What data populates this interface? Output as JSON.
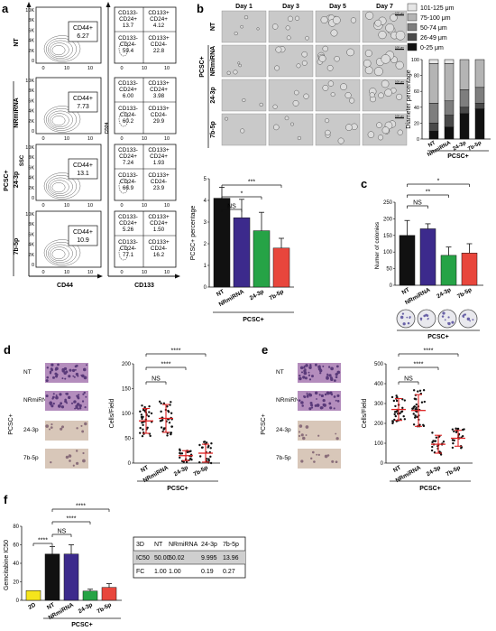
{
  "panels": {
    "a": {
      "letter": "a",
      "group_label": "PCSC+",
      "rows": [
        "NT",
        "NRmiRNA",
        "24-3p",
        "7b-5p"
      ],
      "ssc_label": "SSC",
      "cd44_axis": "CD44",
      "cd24_axis": "CD24",
      "cd133_axis": "CD133",
      "y_ticks": [
        "10K",
        "8K",
        "6K",
        "4K",
        "2K",
        "0"
      ],
      "x_ticks": [
        "0",
        "10",
        "10"
      ],
      "cd44_gates": [
        {
          "label": "CD44+",
          "value": "6.27"
        },
        {
          "label": "CD44+",
          "value": "7.73"
        },
        {
          "label": "CD44+",
          "value": "13.1"
        },
        {
          "label": "CD44+",
          "value": "10.9"
        }
      ],
      "quadrants": [
        {
          "q1l": "CD133-",
          "q1l2": "CD24+",
          "q1v": "13.7",
          "q2l": "CD133+",
          "q2l2": "CD24+",
          "q2v": "4.12",
          "q3l": "CD133-",
          "q3l2": "CD24-",
          "q3v": "59.4",
          "q4l": "CD133+",
          "q4l2": "CD24-",
          "q4v": "22.8"
        },
        {
          "q1l": "CD133-",
          "q1l2": "CD24+",
          "q1v": "6.00",
          "q2l": "CD133+",
          "q2l2": "CD24+",
          "q2v": "3.98",
          "q3l": "CD133-",
          "q3l2": "CD24-",
          "q3v": "60.2",
          "q4l": "CD133+",
          "q4l2": "CD24-",
          "q4v": "29.9"
        },
        {
          "q1l": "CD133-",
          "q1l2": "CD24+",
          "q1v": "7.24",
          "q2l": "CD133+",
          "q2l2": "CD24+",
          "q2v": "1.93",
          "q3l": "CD133-",
          "q3l2": "CD24-",
          "q3v": "66.9",
          "q4l": "CD133+",
          "q4l2": "CD24-",
          "q4v": "23.9"
        },
        {
          "q1l": "CD133-",
          "q1l2": "CD24+",
          "q1v": "5.26",
          "q2l": "CD133+",
          "q2l2": "CD24+",
          "q2v": "1.50",
          "q3l": "CD133-",
          "q3l2": "CD24-",
          "q3v": "77.1",
          "q4l": "CD133+",
          "q4l2": "CD24-",
          "q4v": "16.2"
        }
      ]
    },
    "b": {
      "letter": "b",
      "days": [
        "Day 1",
        "Day 3",
        "Day 5",
        "Day 7"
      ],
      "rows": [
        "NT",
        "NRmiRNA",
        "24-3p",
        "7b-5p"
      ],
      "group_label": "PCSC+",
      "scale": "100 μm",
      "legend": [
        "101-125 μm",
        "75-100 μm",
        "50-74 μm",
        "26-49 μm",
        "0-25 μm"
      ],
      "legend_colors": [
        "#e6e6e6",
        "#b4b4b4",
        "#7e7e7e",
        "#4a4a4a",
        "#111111"
      ],
      "stack_ylabel": "Diameter percentage",
      "stack_yticks": [
        "100",
        "80",
        "60",
        "40",
        "20",
        "0"
      ],
      "stack_cats": [
        "NT",
        "NRmiRNA",
        "24-3p",
        "7b-5p"
      ],
      "stack_group": "PCSC+"
    },
    "c": {
      "letter": "c",
      "ylabel": "Numer of colonies",
      "yticks": [
        "250",
        "200",
        "150",
        "100",
        "50",
        "0"
      ],
      "sig": [
        "NS",
        "**",
        "*"
      ],
      "group_label": "PCSC+"
    },
    "pcsc_pct": {
      "ylabel": "PCSC+ percentage",
      "yticks": [
        "5",
        "4",
        "3",
        "2",
        "1",
        "0"
      ],
      "sig": [
        "NS",
        "*",
        "***"
      ],
      "group_label": "PCSC+"
    },
    "d": {
      "letter": "d",
      "rows": [
        "NT",
        "NRmiRNA",
        "24-3p",
        "7b-5p"
      ],
      "group_label": "PCSC+",
      "ylabel": "Cells/Field",
      "yticks": [
        "200",
        "150",
        "100",
        "50",
        "0"
      ],
      "sig": [
        "NS",
        "****",
        "****"
      ],
      "xgroup": "PCSC+"
    },
    "e": {
      "letter": "e",
      "rows": [
        "NT",
        "NRmiRNA",
        "24-3p",
        "7b-5p"
      ],
      "group_label": "PCSC+",
      "ylabel": "Cells/Field",
      "yticks": [
        "500",
        "400",
        "300",
        "200",
        "100",
        "0"
      ],
      "sig": [
        "NS",
        "****",
        "****"
      ],
      "xgroup": "PCSC+"
    },
    "f": {
      "letter": "f",
      "ylabel": "Gemcitabine IC50",
      "yticks": [
        "80",
        "60",
        "40",
        "20",
        "0"
      ],
      "sig": [
        "****",
        "NS",
        "****",
        "****"
      ],
      "group_label": "PCSC+",
      "table": {
        "header": [
          "3D",
          "NT",
          "NRmiRNA",
          "24-3p",
          "7b-5p"
        ],
        "rows": [
          [
            "IC50",
            "50.00",
            "50.02",
            "9.995",
            "13.96"
          ],
          [
            "FC",
            "1.00",
            "1.00",
            "0.19",
            "0.27"
          ]
        ]
      }
    }
  },
  "chart_data": [
    {
      "type": "bar",
      "ylabel": "PCSC+ percentage",
      "categories": [
        "NT",
        "NRmiRNA",
        "24-3p",
        "7b-5p"
      ],
      "values": [
        4.1,
        3.2,
        2.6,
        1.8
      ],
      "errors": [
        0.5,
        0.85,
        0.85,
        0.45
      ],
      "colors": [
        "#111111",
        "#3c2a8c",
        "#26a346",
        "#e8463c"
      ],
      "ylim": [
        0,
        5
      ]
    },
    {
      "type": "bar",
      "ylabel": "Numer of colonies",
      "categories": [
        "NT",
        "NRmiRNA",
        "24-3p",
        "7b-5p"
      ],
      "values": [
        150,
        170,
        90,
        97
      ],
      "errors": [
        45,
        15,
        25,
        28
      ],
      "colors": [
        "#111111",
        "#3c2a8c",
        "#26a346",
        "#e8463c"
      ],
      "ylim": [
        0,
        250
      ]
    },
    {
      "type": "bar",
      "ylabel": "Diameter percentage",
      "categories": [
        "NT",
        "NRmiRNA",
        "24-3p",
        "7b-5p"
      ],
      "series": [
        {
          "name": "0-25 μm",
          "values": [
            10,
            15,
            32,
            38
          ]
        },
        {
          "name": "26-49 μm",
          "values": [
            10,
            15,
            8,
            7
          ]
        },
        {
          "name": "50-74 μm",
          "values": [
            25,
            18,
            22,
            20
          ]
        },
        {
          "name": "75-100 μm",
          "values": [
            50,
            47,
            38,
            35
          ]
        },
        {
          "name": "101-125 μm",
          "values": [
            5,
            5,
            0,
            0
          ]
        }
      ],
      "ylim": [
        0,
        100
      ]
    },
    {
      "type": "scatter",
      "ylabel": "Cells/Field",
      "categories": [
        "NT",
        "NRmiRNA",
        "24-3p",
        "7b-5p"
      ],
      "means": [
        85,
        90,
        15,
        20
      ],
      "sds": [
        25,
        28,
        10,
        18
      ],
      "ylim": [
        0,
        200
      ]
    },
    {
      "type": "scatter",
      "ylabel": "Cells/Field",
      "categories": [
        "NT",
        "NRmiRNA",
        "24-3p",
        "7b-5p"
      ],
      "means": [
        270,
        265,
        95,
        125
      ],
      "sds": [
        55,
        80,
        45,
        40
      ],
      "ylim": [
        0,
        500
      ]
    },
    {
      "type": "bar",
      "ylabel": "Gemcitabine IC50",
      "categories": [
        "2D",
        "NT",
        "NRmiRNA",
        "24-3p",
        "7b-5p"
      ],
      "values": [
        10.5,
        50,
        50,
        9.995,
        13.96
      ],
      "errors": [
        0,
        8,
        10,
        2,
        4
      ],
      "colors": [
        "#f5e51c",
        "#111111",
        "#3c2a8c",
        "#26a346",
        "#e8463c"
      ],
      "ylim": [
        0,
        80
      ]
    }
  ]
}
